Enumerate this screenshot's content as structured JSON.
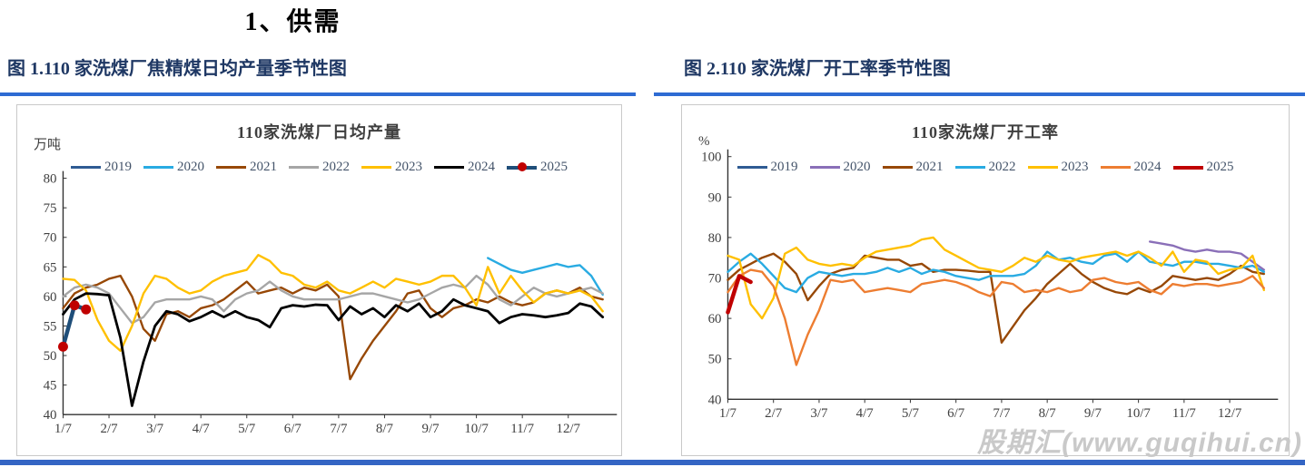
{
  "page": {
    "title": "1、供需"
  },
  "watermark": "股期汇(www.guqihui.cn)",
  "colors": {
    "accent_blue": "#2E6BD3",
    "heading_navy": "#1F3864",
    "footer_blue": "#3465C4",
    "watermark_gray": "#C9C9C9"
  },
  "figures": [
    {
      "heading": "图 1.110 家洗煤厂焦精煤日均产量季节性图"
    },
    {
      "heading": "图 2.110 家洗煤厂开工率季节性图"
    }
  ],
  "chart_data": [
    {
      "type": "line",
      "title": "110家洗煤厂日均产量",
      "ylabel": "万吨",
      "ylim": [
        40,
        80
      ],
      "ytick_step": 5,
      "xlim": [
        1,
        13
      ],
      "xticklabels": [
        "1/7",
        "2/7",
        "3/7",
        "4/7",
        "5/7",
        "6/7",
        "7/7",
        "8/7",
        "9/7",
        "10/7",
        "11/7",
        "12/7"
      ],
      "grid": false,
      "legend_position": "top",
      "series": [
        {
          "name": "2019",
          "color": "#2F5B93",
          "y": []
        },
        {
          "name": "2020",
          "color": "#29ABE2",
          "x": [
            10.25,
            10.5,
            10.75,
            11,
            11.25,
            11.5,
            11.75,
            12,
            12.25,
            12.5,
            12.75
          ],
          "y": [
            66.5,
            65.5,
            64.5,
            64,
            64.5,
            65,
            65.5,
            65,
            65.3,
            63.5,
            60.3
          ]
        },
        {
          "name": "2021",
          "color": "#974806",
          "x_start": 1,
          "x_step": 0.25,
          "y": [
            58,
            60.5,
            61.5,
            62,
            63,
            63.5,
            60,
            54.5,
            52.5,
            57,
            57.5,
            56.5,
            58,
            58.5,
            59.5,
            61,
            62.5,
            60.5,
            61,
            61.5,
            60.5,
            61.5,
            61,
            62,
            60,
            46,
            49.5,
            52.5,
            55,
            57.5,
            60.5,
            61,
            58,
            56.5,
            58,
            58.5,
            59.5,
            59,
            60,
            59,
            58.5,
            59,
            60.5,
            61,
            60.5,
            61.5,
            60,
            59.5
          ]
        },
        {
          "name": "2022",
          "color": "#A6A6A6",
          "x_start": 1,
          "x_step": 0.25,
          "y": [
            60,
            61.5,
            62,
            61.5,
            60.5,
            58,
            55.5,
            56.5,
            59,
            59.5,
            59.5,
            59.5,
            60,
            59.5,
            57.5,
            59.5,
            60.5,
            61,
            62.5,
            61,
            60,
            59.5,
            59.5,
            59.5,
            59.5,
            60,
            60.5,
            60.5,
            60,
            59.5,
            59,
            59.5,
            60.5,
            61.5,
            62,
            61.5,
            63.5,
            62,
            59.5,
            58.5,
            60,
            61.5,
            60.5,
            60,
            60.5,
            61,
            61.5,
            60.5
          ]
        },
        {
          "name": "2023",
          "color": "#FFC000",
          "x_start": 1,
          "x_step": 0.25,
          "y": [
            63,
            62.8,
            61,
            56,
            52.5,
            50.8,
            55,
            60.5,
            63.5,
            63,
            61.5,
            60.5,
            61,
            62.5,
            63.5,
            64,
            64.5,
            67,
            66,
            64,
            63.5,
            62,
            61.5,
            62.5,
            61,
            60.5,
            61.5,
            62.5,
            61.5,
            63,
            62.5,
            62,
            62.5,
            63.5,
            63.5,
            61.5,
            58.5,
            65,
            60.5,
            63.5,
            61,
            59,
            60.5,
            61,
            60.5,
            61,
            60,
            57.5
          ]
        },
        {
          "name": "2024",
          "color": "#000000",
          "width": 2.8,
          "x_start": 1,
          "x_step": 0.25,
          "y": [
            57,
            59.5,
            60.5,
            60.4,
            60.2,
            53,
            41.5,
            49,
            55,
            57.5,
            57,
            55.8,
            56.5,
            57.5,
            56.5,
            57.5,
            56.5,
            56,
            54.8,
            58,
            58.5,
            58.3,
            58.6,
            58.5,
            56,
            58.3,
            57,
            58,
            56.5,
            58.5,
            57.5,
            58.8,
            56.5,
            57.5,
            59.5,
            58.5,
            58,
            57.5,
            55.5,
            56.5,
            57,
            56.8,
            56.5,
            56.8,
            57.2,
            58.8,
            58.3,
            56.5
          ]
        },
        {
          "name": "2025",
          "color": "#1F4E79",
          "width": 4.5,
          "marker": "#C00000",
          "x": [
            1,
            1.25,
            1.5
          ],
          "y": [
            51.5,
            58.5,
            57.8
          ]
        }
      ]
    },
    {
      "type": "line",
      "title": "110家洗煤厂开工率",
      "ylabel": "%",
      "ylim": [
        40,
        100
      ],
      "ytick_step": 10,
      "xlim": [
        1,
        13
      ],
      "xticklabels": [
        "1/7",
        "2/7",
        "3/7",
        "4/7",
        "5/7",
        "6/7",
        "7/7",
        "8/7",
        "9/7",
        "10/7",
        "11/7",
        "12/7"
      ],
      "grid": false,
      "legend_position": "top",
      "series": [
        {
          "name": "2019",
          "color": "#2F5B93",
          "y": []
        },
        {
          "name": "2020",
          "color": "#8A6FB8",
          "x": [
            10.25,
            10.5,
            10.75,
            11,
            11.25,
            11.5,
            11.75,
            12,
            12.25,
            12.5,
            12.75
          ],
          "y": [
            79,
            78.5,
            78,
            77,
            76.5,
            77,
            76.5,
            76.5,
            76,
            74,
            72
          ]
        },
        {
          "name": "2021",
          "color": "#974806",
          "x_start": 1,
          "x_step": 0.25,
          "y": [
            69.5,
            72,
            73.5,
            75,
            76,
            74,
            71,
            64.5,
            68,
            71,
            72,
            72.5,
            75.5,
            75,
            74.5,
            74.5,
            73,
            73.5,
            71.5,
            72,
            72,
            71.8,
            71.5,
            71.5,
            54,
            58,
            62,
            65,
            68.5,
            71,
            73.5,
            71,
            69,
            67.5,
            66.5,
            66,
            67.5,
            66.5,
            68,
            70.5,
            70,
            69.5,
            70,
            69.5,
            71,
            73,
            71.5,
            71
          ]
        },
        {
          "name": "2022",
          "color": "#29ABE2",
          "x_start": 1,
          "x_step": 0.25,
          "y": [
            71.5,
            74,
            76,
            73.5,
            70.5,
            67.5,
            66.5,
            70,
            71.5,
            71,
            70.5,
            71,
            71,
            71.5,
            72.5,
            71.5,
            72.5,
            71,
            72,
            71.5,
            70.5,
            70,
            69.5,
            70.5,
            70.5,
            70.5,
            71,
            73,
            76.5,
            74.5,
            75,
            74,
            73.5,
            75.5,
            76,
            74,
            76.5,
            74,
            73.5,
            73,
            74,
            74,
            73.5,
            73.5,
            73,
            72.5,
            73,
            71.5
          ]
        },
        {
          "name": "2023",
          "color": "#FFC000",
          "x_start": 1,
          "x_step": 0.25,
          "y": [
            75.5,
            74.5,
            63.5,
            60,
            65,
            76,
            77.5,
            74.5,
            73.5,
            73,
            73.5,
            73,
            75,
            76.5,
            77,
            77.5,
            78,
            79.5,
            80,
            77,
            75.5,
            74,
            72.5,
            72,
            71.5,
            73,
            75,
            74,
            75.5,
            74.5,
            74,
            75,
            75.5,
            76,
            76.5,
            75.5,
            76.5,
            75,
            73,
            76.5,
            71.5,
            74.5,
            74,
            71,
            72,
            72.5,
            75.5,
            67
          ]
        },
        {
          "name": "2024",
          "color": "#ED7D31",
          "x_start": 1,
          "x_step": 0.25,
          "y": [
            66.5,
            70.5,
            72,
            71.5,
            68,
            60,
            48.5,
            56,
            62,
            69.5,
            69,
            69.5,
            66.5,
            67,
            67.5,
            67,
            66.5,
            68.5,
            69,
            69.5,
            69,
            68,
            66.5,
            65.5,
            69,
            68.5,
            66.5,
            67,
            66.5,
            67.5,
            66.5,
            67,
            69.5,
            70,
            69,
            68.5,
            69,
            67,
            66,
            68.5,
            68,
            68.5,
            68.5,
            68,
            68.5,
            69,
            70.5,
            67.5
          ]
        },
        {
          "name": "2025",
          "color": "#C00000",
          "width": 4.5,
          "x": [
            1,
            1.25,
            1.5
          ],
          "y": [
            61.5,
            70.5,
            69
          ]
        }
      ]
    }
  ]
}
